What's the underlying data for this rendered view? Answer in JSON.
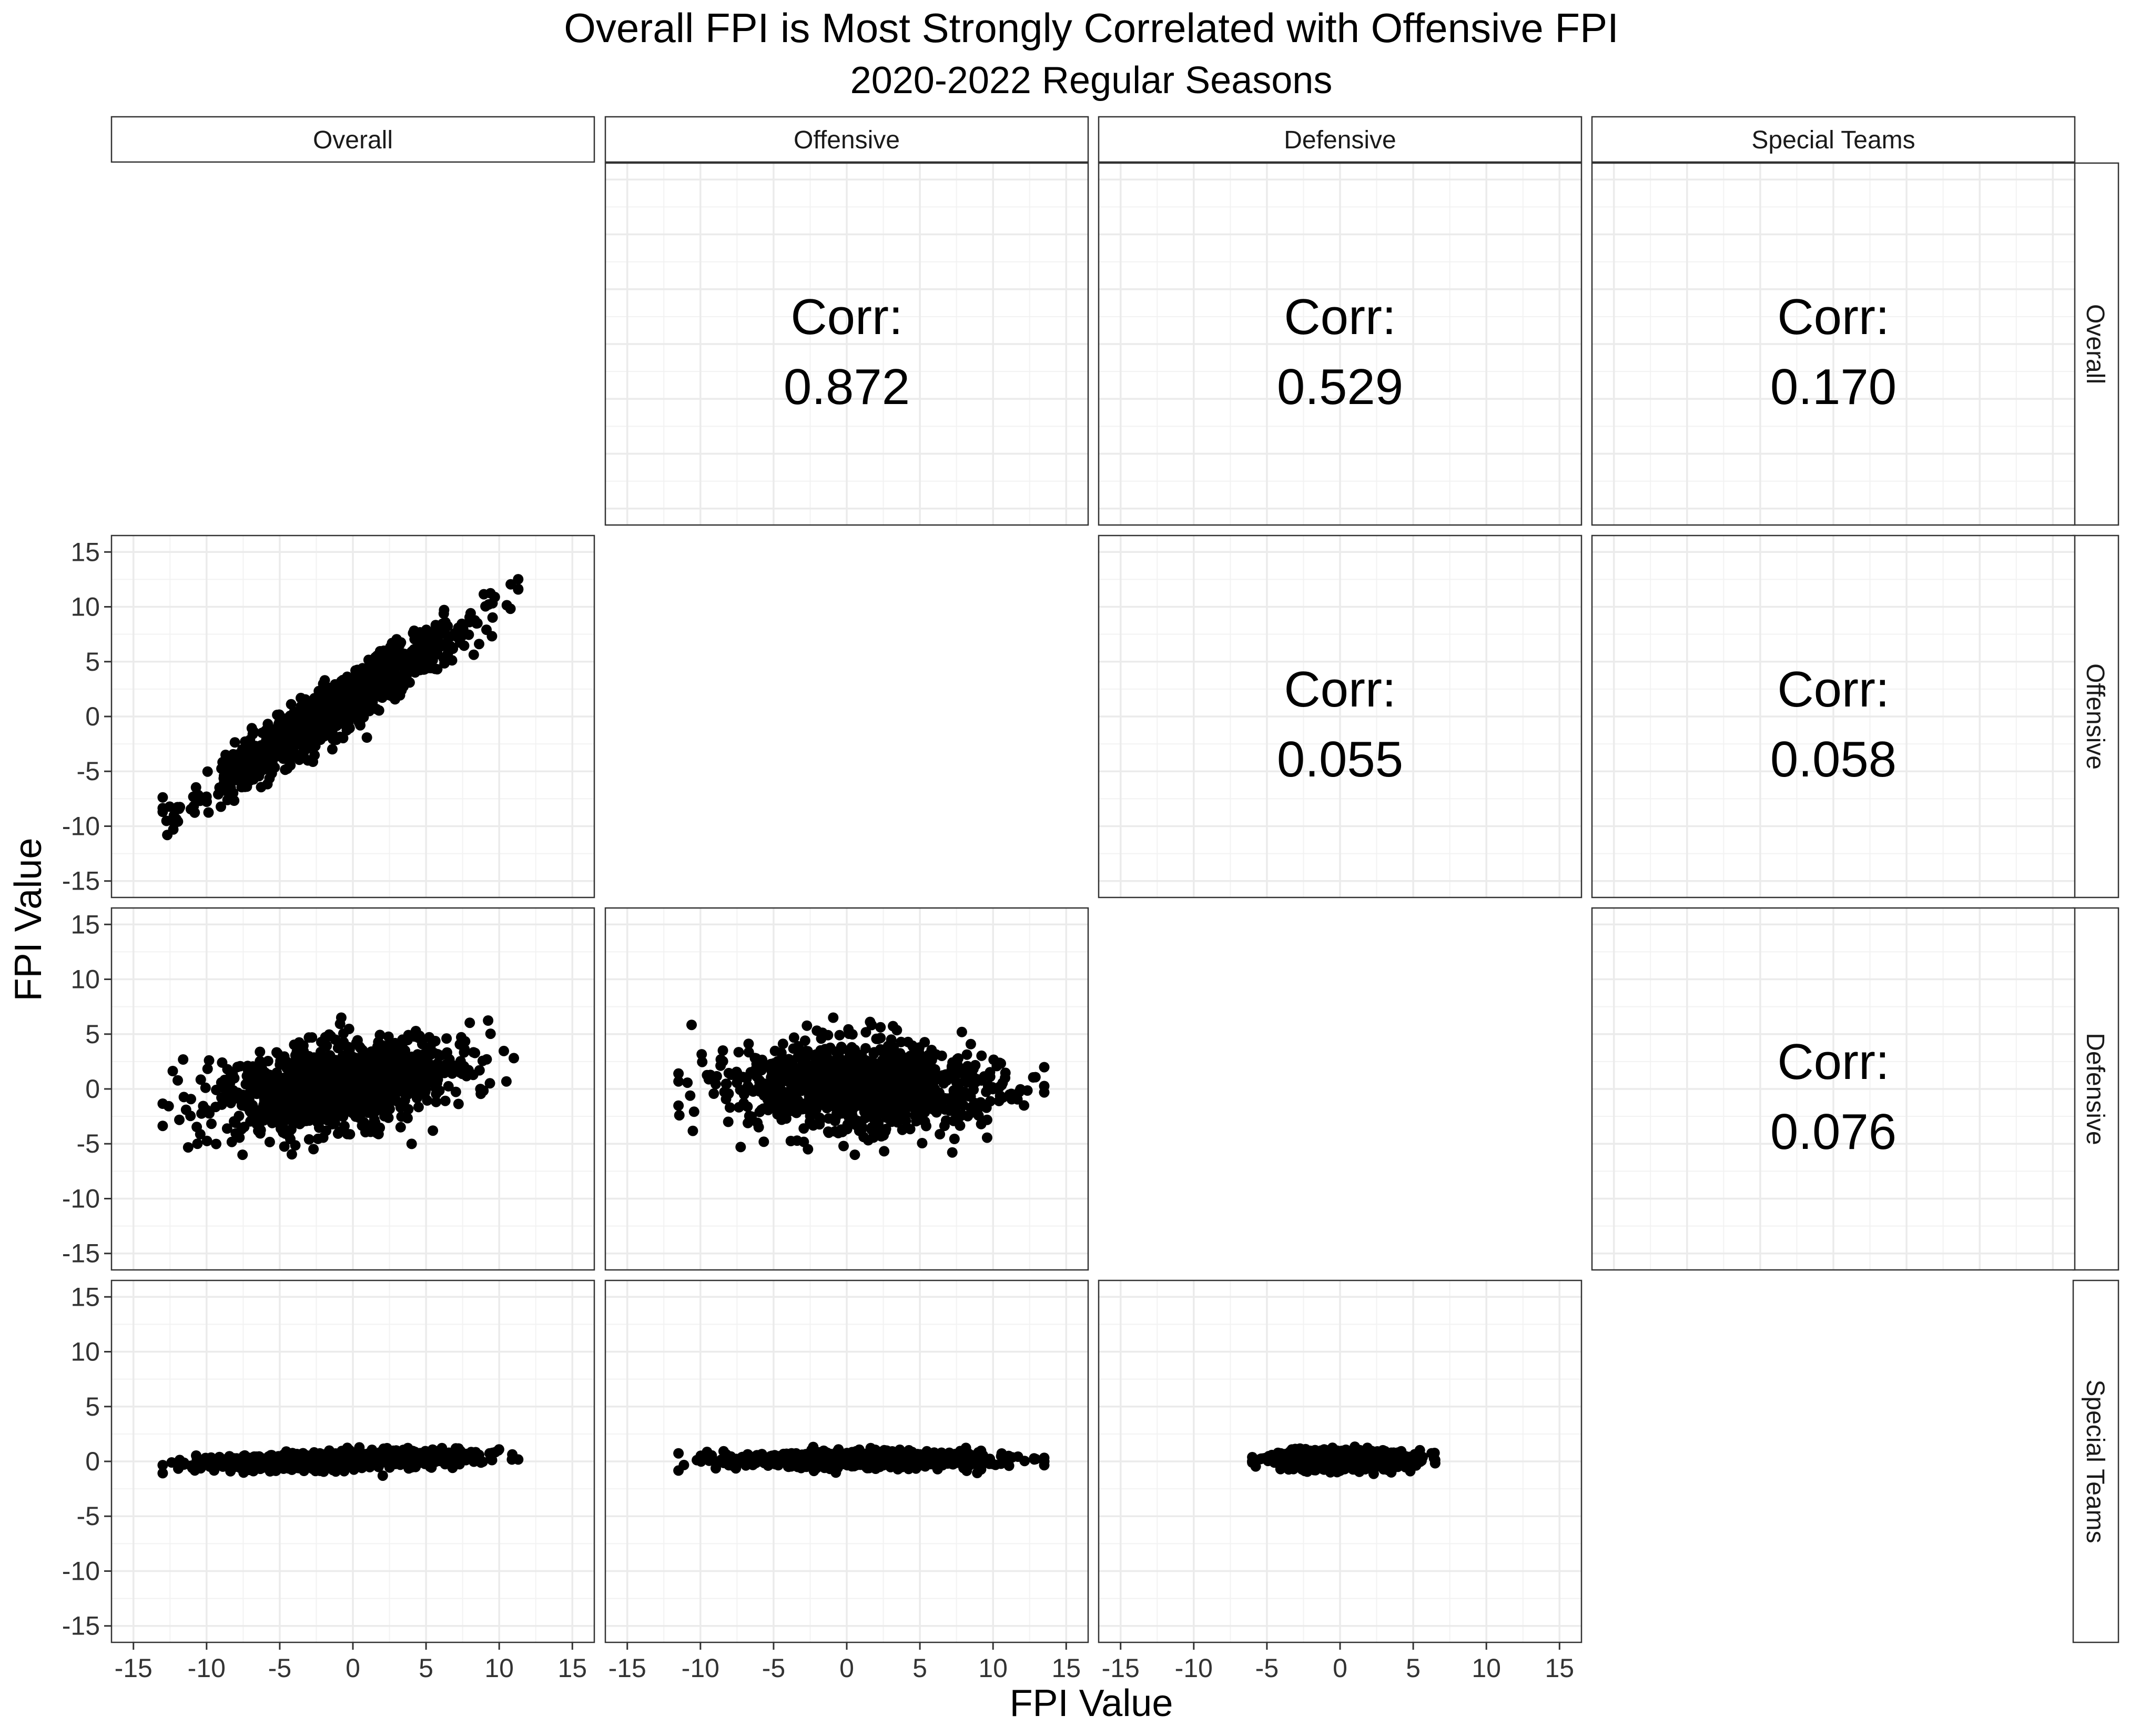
{
  "chart_data": {
    "type": "scatter",
    "layout": "pairs-matrix",
    "title": "Overall FPI is Most Strongly Correlated with Offensive FPI",
    "subtitle": "2020-2022 Regular Seasons",
    "xlabel": "FPI Value",
    "ylabel": "FPI Value",
    "variables": [
      "Overall",
      "Offensive",
      "Defensive",
      "Special Teams"
    ],
    "xlim": [
      -16.5,
      16.5
    ],
    "ylim": [
      -16.5,
      16.5
    ],
    "ticks": [
      -15,
      -10,
      -5,
      0,
      5,
      10,
      15
    ],
    "tick_labels": [
      "-15",
      "-10",
      "-5",
      "0",
      "5",
      "10",
      "15"
    ],
    "corr_label": "Corr:",
    "correlations": [
      {
        "row": "Overall",
        "col": "Offensive",
        "value": "0.872"
      },
      {
        "row": "Overall",
        "col": "Defensive",
        "value": "0.529"
      },
      {
        "row": "Overall",
        "col": "Special Teams",
        "value": "0.170"
      },
      {
        "row": "Offensive",
        "col": "Defensive",
        "value": "0.055"
      },
      {
        "row": "Offensive",
        "col": "Special Teams",
        "value": "0.058"
      },
      {
        "row": "Defensive",
        "col": "Special Teams",
        "value": "0.076"
      }
    ],
    "scatter_cloud_descriptions": [
      {
        "x_var": "Overall",
        "y_var": "Offensive",
        "x_range": [
          -13,
          11.3
        ],
        "y_range": [
          -11.5,
          13.5
        ],
        "slope": 0.86,
        "spread": 1.2
      },
      {
        "x_var": "Overall",
        "y_var": "Defensive",
        "x_range": [
          -13,
          11
        ],
        "y_range": [
          -6,
          6.5
        ],
        "slope": 0.2,
        "spread": 1.9
      },
      {
        "x_var": "Offensive",
        "y_var": "Defensive",
        "x_range": [
          -11.5,
          13.5
        ],
        "y_range": [
          -6,
          6.5
        ],
        "slope": 0.0,
        "spread": 2.0
      },
      {
        "x_var": "Overall",
        "y_var": "Special Teams",
        "x_range": [
          -13,
          11.3
        ],
        "y_range": [
          -1.3,
          1.6
        ],
        "slope": 0.04,
        "spread": 0.35
      },
      {
        "x_var": "Offensive",
        "y_var": "Special Teams",
        "x_range": [
          -11.5,
          13.5
        ],
        "y_range": [
          -1.3,
          1.6
        ],
        "slope": 0.0,
        "spread": 0.35
      },
      {
        "x_var": "Defensive",
        "y_var": "Special Teams",
        "x_range": [
          -6,
          6.5
        ],
        "y_range": [
          -1.3,
          1.6
        ],
        "slope": 0.0,
        "spread": 0.4
      }
    ],
    "grid": true,
    "point_color": "#000000",
    "points_per_panel": 1100
  }
}
